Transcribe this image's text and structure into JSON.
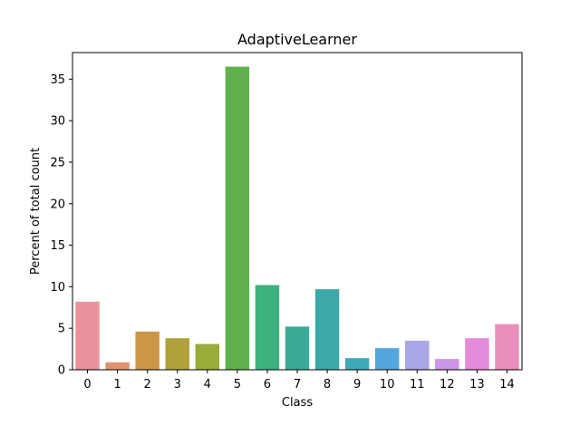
{
  "chart_data": {
    "type": "bar",
    "title": "AdaptiveLearner",
    "xlabel": "Class",
    "ylabel": "Percent of total count",
    "categories": [
      "0",
      "1",
      "2",
      "3",
      "4",
      "5",
      "6",
      "7",
      "8",
      "9",
      "10",
      "11",
      "12",
      "13",
      "14"
    ],
    "values": [
      8.2,
      0.9,
      4.6,
      3.8,
      3.1,
      36.5,
      10.2,
      5.2,
      9.7,
      1.4,
      2.6,
      3.5,
      1.3,
      3.8,
      5.5
    ],
    "colors": [
      "#e8929c",
      "#e0936e",
      "#cd9646",
      "#b0a13c",
      "#9aaa3b",
      "#5fb04d",
      "#3cb27f",
      "#3aab98",
      "#3ca9a9",
      "#3daab9",
      "#55a6dc",
      "#a7a6e6",
      "#cd95ea",
      "#e48bd9",
      "#e98fbb"
    ],
    "ylim": [
      0,
      38.2
    ],
    "yticks": [
      0,
      5,
      10,
      15,
      20,
      25,
      30,
      35
    ],
    "grid": false,
    "legend": "none"
  }
}
